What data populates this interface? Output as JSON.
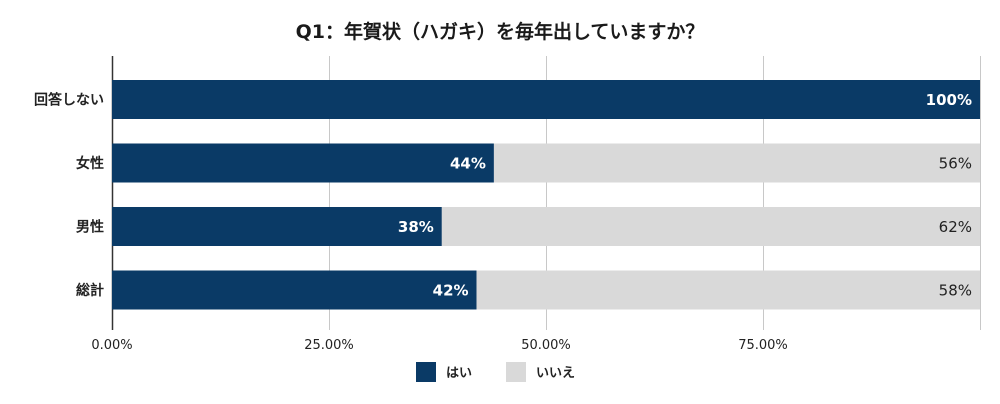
{
  "chart_data": {
    "type": "bar",
    "orientation": "horizontal",
    "stacked": true,
    "title": "Q1：年賀状（ハガキ）を毎年出していますか？",
    "categories": [
      "回答しない",
      "女性",
      "男性",
      "総計"
    ],
    "series": [
      {
        "name": "はい",
        "color": "#0a3a66",
        "values": [
          100,
          44,
          38,
          42
        ],
        "labels": [
          "100%",
          "44%",
          "38%",
          "42%"
        ]
      },
      {
        "name": "いいえ",
        "color": "#d9d9d9",
        "values": [
          0,
          56,
          62,
          58
        ],
        "labels": [
          "",
          "56%",
          "62%",
          "58%"
        ]
      }
    ],
    "xlim": [
      0,
      100
    ],
    "x_ticks": [
      "0.00%",
      "25.00%",
      "50.00%",
      "75.00%"
    ],
    "grid": true,
    "legend_position": "bottom"
  }
}
